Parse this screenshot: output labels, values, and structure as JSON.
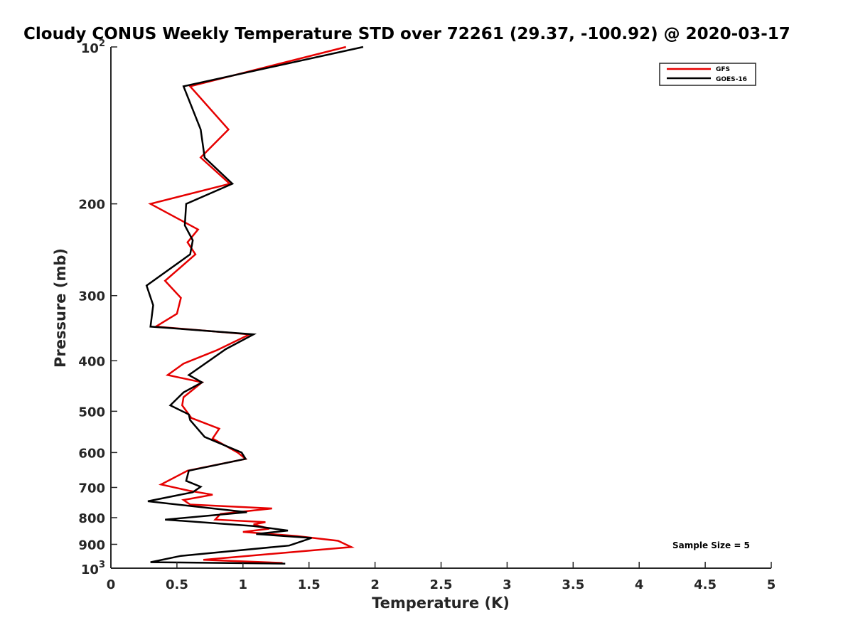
{
  "chart_data": {
    "type": "line",
    "title": "Cloudy CONUS Weekly Temperature STD over 72261 (29.37, -100.92) @ 2020-03-17",
    "xlabel": "Temperature (K)",
    "ylabel": "Pressure (mb)",
    "xlim": [
      0,
      5
    ],
    "ylim": [
      100,
      1000
    ],
    "yscale": "log",
    "y_reversed": true,
    "x_ticks": [
      0,
      0.5,
      1,
      1.5,
      2,
      2.5,
      3,
      3.5,
      4,
      4.5,
      5
    ],
    "x_tick_labels": [
      "0",
      "0.5",
      "1",
      "1.5",
      "2",
      "2.5",
      "3",
      "3.5",
      "4",
      "4.5",
      "5"
    ],
    "y_ticks": [
      100,
      200,
      300,
      400,
      500,
      600,
      700,
      800,
      900,
      1000
    ],
    "y_tick_labels": [
      {
        "base": "10",
        "exp": "2"
      },
      {
        "base": "200",
        "exp": ""
      },
      {
        "base": "300",
        "exp": ""
      },
      {
        "base": "400",
        "exp": ""
      },
      {
        "base": "500",
        "exp": ""
      },
      {
        "base": "600",
        "exp": ""
      },
      {
        "base": "700",
        "exp": ""
      },
      {
        "base": "800",
        "exp": ""
      },
      {
        "base": "900",
        "exp": ""
      },
      {
        "base": "10",
        "exp": "3"
      }
    ],
    "grid": false,
    "legend_position": "top-right",
    "annotation": "Sample Size = 5",
    "series": [
      {
        "name": "GFS",
        "color": "#e60000",
        "points": [
          [
            1.78,
            100
          ],
          [
            0.6,
            119
          ],
          [
            0.89,
            144
          ],
          [
            0.68,
            163
          ],
          [
            0.9,
            183
          ],
          [
            0.3,
            200
          ],
          [
            0.66,
            224
          ],
          [
            0.58,
            237
          ],
          [
            0.64,
            250
          ],
          [
            0.41,
            281
          ],
          [
            0.53,
            303
          ],
          [
            0.5,
            325
          ],
          [
            0.34,
            344
          ],
          [
            1.05,
            356
          ],
          [
            0.8,
            382
          ],
          [
            0.55,
            405
          ],
          [
            0.43,
            426
          ],
          [
            0.69,
            440
          ],
          [
            0.55,
            470
          ],
          [
            0.54,
            487
          ],
          [
            0.61,
            515
          ],
          [
            0.82,
            540
          ],
          [
            0.77,
            564
          ],
          [
            0.96,
            600
          ],
          [
            1.02,
            617
          ],
          [
            0.58,
            650
          ],
          [
            0.38,
            691
          ],
          [
            0.59,
            710
          ],
          [
            0.77,
            723
          ],
          [
            0.55,
            740
          ],
          [
            0.6,
            755
          ],
          [
            1.22,
            768
          ],
          [
            0.83,
            787
          ],
          [
            0.79,
            807
          ],
          [
            1.17,
            816
          ],
          [
            1.08,
            824
          ],
          [
            1.2,
            840
          ],
          [
            1.0,
            852
          ],
          [
            1.41,
            868
          ],
          [
            1.72,
            886
          ],
          [
            1.82,
            911
          ],
          [
            1.17,
            941
          ],
          [
            0.7,
            964
          ],
          [
            1.3,
            977
          ]
        ]
      },
      {
        "name": "GOES-16",
        "color": "#000000",
        "points": [
          [
            1.91,
            100
          ],
          [
            0.55,
            119
          ],
          [
            0.68,
            144
          ],
          [
            0.71,
            163
          ],
          [
            0.92,
            183
          ],
          [
            0.57,
            200
          ],
          [
            0.56,
            220
          ],
          [
            0.62,
            235
          ],
          [
            0.6,
            250
          ],
          [
            0.27,
            287
          ],
          [
            0.32,
            313
          ],
          [
            0.3,
            344
          ],
          [
            1.08,
            356
          ],
          [
            0.87,
            380
          ],
          [
            0.59,
            426
          ],
          [
            0.69,
            440
          ],
          [
            0.55,
            460
          ],
          [
            0.45,
            487
          ],
          [
            0.59,
            507
          ],
          [
            0.6,
            520
          ],
          [
            0.71,
            560
          ],
          [
            0.99,
            600
          ],
          [
            1.02,
            617
          ],
          [
            0.59,
            650
          ],
          [
            0.57,
            680
          ],
          [
            0.68,
            698
          ],
          [
            0.62,
            715
          ],
          [
            0.28,
            744
          ],
          [
            1.03,
            781
          ],
          [
            0.41,
            807
          ],
          [
            1.08,
            830
          ],
          [
            1.34,
            847
          ],
          [
            1.1,
            860
          ],
          [
            1.52,
            875
          ],
          [
            1.35,
            905
          ],
          [
            0.53,
            947
          ],
          [
            0.3,
            974
          ],
          [
            1.32,
            980
          ]
        ]
      }
    ]
  }
}
